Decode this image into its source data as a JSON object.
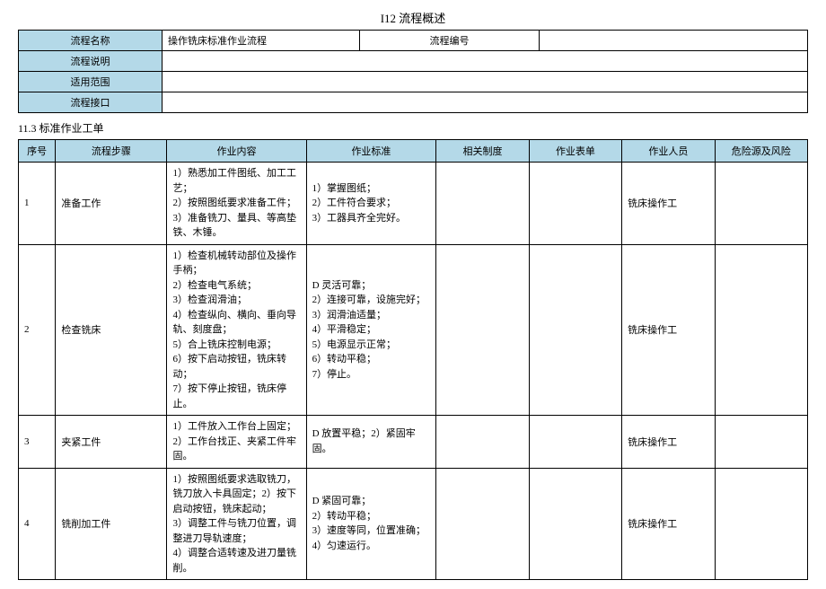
{
  "title": "I12 流程概述",
  "overview": {
    "labels": {
      "process_name": "流程名称",
      "process_desc": "流程说明",
      "scope": "适用范围",
      "interface": "流程接口",
      "flow_number": "流程编号"
    },
    "values": {
      "process_name": "操作铣床标准作业流程",
      "process_desc": "",
      "scope": "",
      "interface": "",
      "flow_number": ""
    }
  },
  "section_title": "11.3 标准作业工单",
  "headers": {
    "num": "序号",
    "step": "流程步骤",
    "content": "作业内容",
    "standard": "作业标准",
    "system": "相关制度",
    "form": "作业表单",
    "person": "作业人员",
    "risk": "危险源及风险"
  },
  "rows": [
    {
      "num": "1",
      "step": "准备工作",
      "content": "1）熟悉加工件图纸、加工工艺；\n2）按照图纸要求准备工件；\n3）准备铣刀、量具、等高垫铁、木锤。",
      "standard": "1）掌握图纸；\n2）工件符合要求；\n3）工器具齐全完好。",
      "system": "",
      "form": "",
      "person": "铣床操作工",
      "risk": ""
    },
    {
      "num": "2",
      "step": "检查铣床",
      "content": "1）检查机械转动部位及操作手柄；\n2）检查电气系统；\n3）检查润滑油；\n4）检查纵向、横向、垂向导轨、刻度盘；\n5）合上铣床控制电源；\n6）按下启动按钮，铣床转动；\n7）按下停止按钮，铣床停止。",
      "standard": "D 灵活可靠；\n2）连接可靠，设施完好；\n3）润滑油适量；\n4）平滑稳定；\n5）电源显示正常；\n6）转动平稳；\n7）停止。",
      "system": "",
      "form": "",
      "person": "铣床操作工",
      "risk": ""
    },
    {
      "num": "3",
      "step": "夹紧工件",
      "content": "1）工件放入工作台上固定；\n2）工作台找正、夹紧工件牢固。",
      "standard": "D 放置平稳；2）紧固牢固。",
      "system": "",
      "form": "",
      "person": "铣床操作工",
      "risk": ""
    },
    {
      "num": "4",
      "step": "铣削加工件",
      "content": "1）按照图纸要求选取铣刀，铣刀放入卡具固定；2）按下启动按钮，铣床起动；\n3）调整工件与铣刀位置，调整进刀导轨速度；\n4）调整合适转速及进刀量铣削。",
      "standard": "D 紧固可靠；\n2）转动平稳；\n3）速度等同，位置准确；\n4）匀速运行。",
      "system": "",
      "form": "",
      "person": "铣床操作工",
      "risk": ""
    }
  ]
}
